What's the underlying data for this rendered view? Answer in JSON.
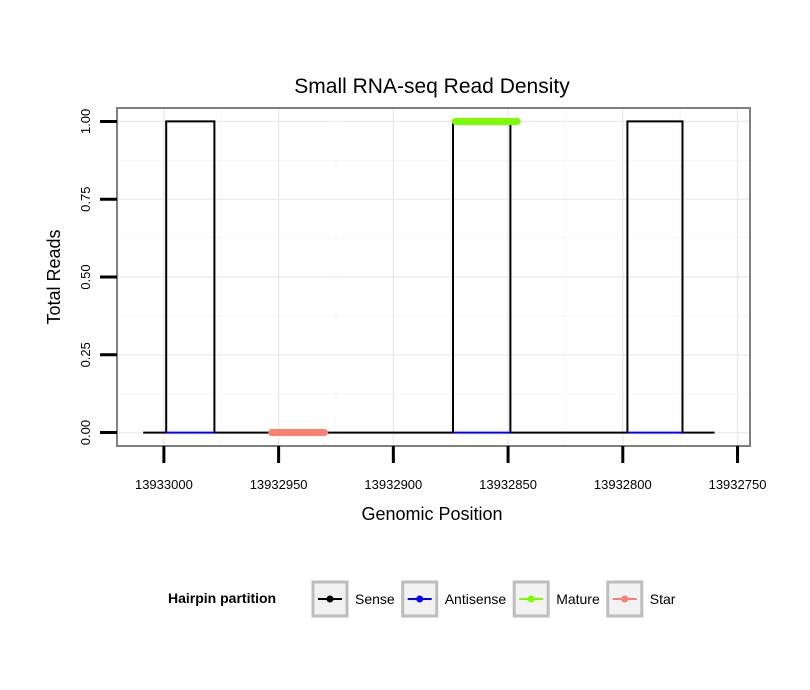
{
  "chart_data": {
    "type": "line",
    "title": "Small RNA-seq Read Density",
    "xlabel": "Genomic Position",
    "ylabel": "Total Reads",
    "x_reversed": true,
    "xlim": [
      13933020,
      13932745
    ],
    "ylim": [
      -0.04,
      1.04
    ],
    "x_ticks": [
      13933000,
      13932950,
      13932900,
      13932850,
      13932800,
      13932750
    ],
    "x_tick_labels": [
      "13933000",
      "13932950",
      "13932900",
      "13932850",
      "13932800",
      "13932750"
    ],
    "y_ticks": [
      0,
      0.25,
      0.5,
      0.75,
      1
    ],
    "y_tick_labels": [
      "0.00",
      "0.25",
      "0.50",
      "0.75",
      "1.00"
    ],
    "grid": true,
    "legend": {
      "title": "Hairpin partition",
      "position": "bottom",
      "entries": [
        {
          "name": "Sense",
          "color": "#000000"
        },
        {
          "name": "Antisense",
          "color": "#0000ff"
        },
        {
          "name": "Mature",
          "color": "#7cfc00"
        },
        {
          "name": "Star",
          "color": "#fa8072"
        }
      ]
    },
    "series": [
      {
        "name": "Sense",
        "color": "#000000",
        "style": "line",
        "points": [
          [
            13933009,
            0
          ],
          [
            13932999,
            0
          ],
          [
            13932999,
            1
          ],
          [
            13932978,
            1
          ],
          [
            13932978,
            0
          ],
          [
            13932874,
            0
          ],
          [
            13932874,
            1
          ],
          [
            13932849,
            1
          ],
          [
            13932849,
            0
          ],
          [
            13932798,
            0
          ],
          [
            13932798,
            1
          ],
          [
            13932774,
            1
          ],
          [
            13932774,
            0
          ],
          [
            13932760,
            0
          ]
        ]
      },
      {
        "name": "Antisense",
        "color": "#0000ff",
        "style": "line",
        "points": [
          [
            13932999,
            0
          ],
          [
            13932978,
            0
          ]
        ],
        "extra_segments": [
          [
            [
              13932874,
              0
            ],
            [
              13932849,
              0
            ]
          ],
          [
            [
              13932798,
              0
            ],
            [
              13932774,
              0
            ]
          ]
        ]
      },
      {
        "name": "Mature",
        "color": "#7cfc00",
        "style": "thick",
        "x_range": [
          13932873,
          13932846
        ],
        "y": 1
      },
      {
        "name": "Star",
        "color": "#fa8072",
        "style": "thick",
        "x_range": [
          13932953,
          13932930
        ],
        "y": 0
      }
    ]
  }
}
